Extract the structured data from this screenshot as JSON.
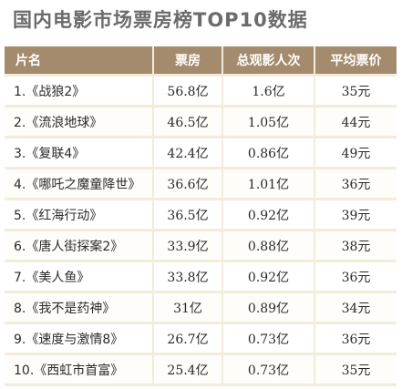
{
  "title": "国内电影市场票房榜TOP10数据",
  "chart_data": {
    "type": "table",
    "title": "国内电影市场票房榜TOP10数据",
    "columns": [
      "片名",
      "票房",
      "总观影人次",
      "平均票价"
    ],
    "rows": [
      {
        "rank": "1.",
        "name": "《战狼2》",
        "box_office": "56.8亿",
        "admissions": "1.6亿",
        "avg_price": "35元"
      },
      {
        "rank": "2.",
        "name": "《流浪地球》",
        "box_office": "46.5亿",
        "admissions": "1.05亿",
        "avg_price": "44元"
      },
      {
        "rank": "3.",
        "name": "《复联4》",
        "box_office": "42.4亿",
        "admissions": "0.86亿",
        "avg_price": "49元"
      },
      {
        "rank": "4.",
        "name": "《哪吒之魔童降世》",
        "box_office": "36.6亿",
        "admissions": "1.01亿",
        "avg_price": "36元"
      },
      {
        "rank": "5.",
        "name": "《红海行动》",
        "box_office": "36.5亿",
        "admissions": "0.92亿",
        "avg_price": "39元"
      },
      {
        "rank": "6.",
        "name": "《唐人街探案2》",
        "box_office": "33.9亿",
        "admissions": "0.88亿",
        "avg_price": "38元"
      },
      {
        "rank": "7.",
        "name": "《美人鱼》",
        "box_office": "33.8亿",
        "admissions": "0.92亿",
        "avg_price": "36元"
      },
      {
        "rank": "8.",
        "name": "《我不是药神》",
        "box_office": "31亿",
        "admissions": "0.89亿",
        "avg_price": "34元"
      },
      {
        "rank": "9.",
        "name": "《速度与激情8》",
        "box_office": "26.7亿",
        "admissions": "0.73亿",
        "avg_price": "36元"
      },
      {
        "rank": "10.",
        "name": "《西虹市首富》",
        "box_office": "25.4亿",
        "admissions": "0.73亿",
        "avg_price": "35元"
      }
    ],
    "colors": {
      "header_bg": "#a48b6d",
      "header_text": "#ffffff",
      "table_bg": "#f3ebdc",
      "cell_bg": "#ffffff"
    }
  }
}
